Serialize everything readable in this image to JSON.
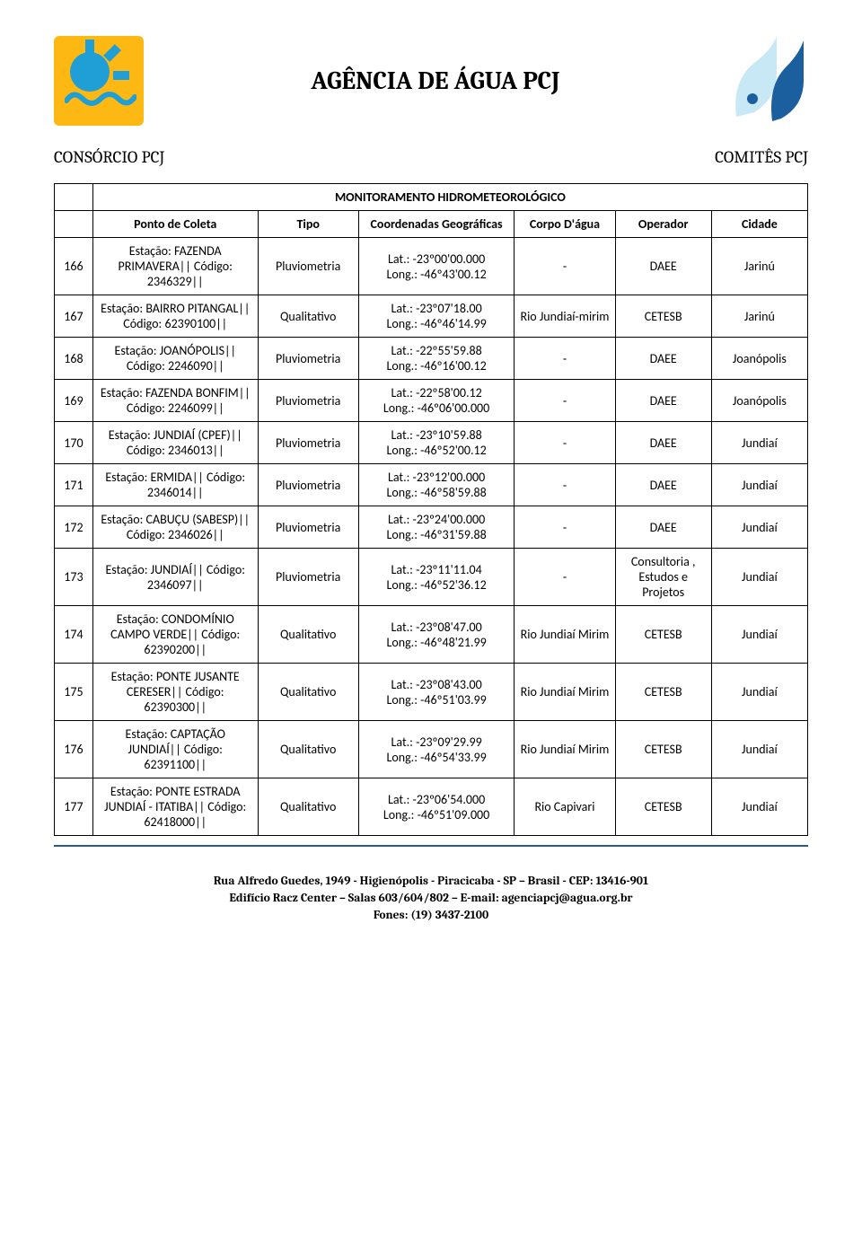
{
  "header": {
    "title": "AGÊNCIA DE ÁGUA PCJ",
    "left_label": "CONSÓRCIO PCJ",
    "right_label": "COMITÊS PCJ"
  },
  "table": {
    "caption": "MONITORAMENTO HIDROMETEOROLÓGICO",
    "columns": {
      "ponto": "Ponto de Coleta",
      "tipo": "Tipo",
      "coord": "Coordenadas Geográficas",
      "corpo": "Corpo D'água",
      "operador": "Operador",
      "cidade": "Cidade"
    },
    "rows": [
      {
        "n": "166",
        "ponto": "Estação: FAZENDA PRIMAVERA|| Código: 2346329||",
        "tipo": "Pluviometria",
        "lat": "Lat.: -23º00'00.000",
        "lon": "Long.: -46º43'00.12",
        "corpo": "-",
        "op": "DAEE",
        "cid": "Jarinú"
      },
      {
        "n": "167",
        "ponto": "Estação: BAIRRO PITANGAL|| Código: 62390100||",
        "tipo": "Qualitativo",
        "lat": "Lat.: -23º07'18.00",
        "lon": "Long.: -46º46'14.99",
        "corpo": "Rio Jundiaí-mirim",
        "op": "CETESB",
        "cid": "Jarinú"
      },
      {
        "n": "168",
        "ponto": "Estação: JOANÓPOLIS|| Código: 2246090||",
        "tipo": "Pluviometria",
        "lat": "Lat.: -22º55'59.88",
        "lon": "Long.: -46º16'00.12",
        "corpo": "-",
        "op": "DAEE",
        "cid": "Joanópolis"
      },
      {
        "n": "169",
        "ponto": "Estação: FAZENDA BONFIM|| Código: 2246099||",
        "tipo": "Pluviometria",
        "lat": "Lat.: -22º58'00.12",
        "lon": "Long.: -46º06'00.000",
        "corpo": "-",
        "op": "DAEE",
        "cid": "Joanópolis"
      },
      {
        "n": "170",
        "ponto": "Estação: JUNDIAÍ (CPEF)|| Código: 2346013||",
        "tipo": "Pluviometria",
        "lat": "Lat.: -23º10'59.88",
        "lon": "Long.: -46º52'00.12",
        "corpo": "-",
        "op": "DAEE",
        "cid": "Jundiaí"
      },
      {
        "n": "171",
        "ponto": "Estação: ERMIDA|| Código: 2346014||",
        "tipo": "Pluviometria",
        "lat": "Lat.: -23º12'00.000",
        "lon": "Long.: -46º58'59.88",
        "corpo": "-",
        "op": "DAEE",
        "cid": "Jundiaí"
      },
      {
        "n": "172",
        "ponto": "Estação: CABUÇU (SABESP)|| Código: 2346026||",
        "tipo": "Pluviometria",
        "lat": "Lat.: -23º24'00.000",
        "lon": "Long.: -46º31'59.88",
        "corpo": "-",
        "op": "DAEE",
        "cid": "Jundiaí"
      },
      {
        "n": "173",
        "ponto": "Estação: JUNDIAÍ|| Código: 2346097||",
        "tipo": "Pluviometria",
        "lat": "Lat.: -23º11'11.04",
        "lon": "Long.: -46º52'36.12",
        "corpo": "-",
        "op": "Consultoria , Estudos e Projetos",
        "cid": "Jundiaí"
      },
      {
        "n": "174",
        "ponto": "Estação: CONDOMÍNIO CAMPO VERDE|| Código: 62390200||",
        "tipo": "Qualitativo",
        "lat": "Lat.: -23º08'47.00",
        "lon": "Long.: -46º48'21.99",
        "corpo": "Rio Jundiaí Mirim",
        "op": "CETESB",
        "cid": "Jundiaí"
      },
      {
        "n": "175",
        "ponto": "Estação: PONTE JUSANTE CERESER|| Código: 62390300||",
        "tipo": "Qualitativo",
        "lat": "Lat.: -23º08'43.00",
        "lon": "Long.: -46º51'03.99",
        "corpo": "Rio Jundiaí Mirim",
        "op": "CETESB",
        "cid": "Jundiaí"
      },
      {
        "n": "176",
        "ponto": "Estação: CAPTAÇÃO JUNDIAÍ|| Código: 62391100||",
        "tipo": "Qualitativo",
        "lat": "Lat.: -23º09'29.99",
        "lon": "Long.: -46º54'33.99",
        "corpo": "Rio Jundiaí Mirim",
        "op": "CETESB",
        "cid": "Jundiaí"
      },
      {
        "n": "177",
        "ponto": "Estação: PONTE ESTRADA JUNDIAÍ - ITATIBA|| Código: 62418000||",
        "tipo": "Qualitativo",
        "lat": "Lat.: -23º06'54.000",
        "lon": "Long.: -46º51'09.000",
        "corpo": "Rio Capivari",
        "op": "CETESB",
        "cid": "Jundiaí"
      }
    ]
  },
  "footer": {
    "line1": "Rua Alfredo Guedes, 1949 - Higienópolis - Piracicaba -  SP – Brasil  -  CEP: 13416-901",
    "line2": "Edifício Racz Center – Salas 603/604/802 – E-mail: agenciapcj@agua.org.br",
    "line3": "Fones: (19) 3437-2100"
  },
  "colors": {
    "border": "#000000",
    "footer_rule": "#2a5a8a",
    "logo_bg": "#fdb813",
    "logo_sun": "#1f9fd6",
    "logo_right_fill": "#1b5f9e"
  }
}
